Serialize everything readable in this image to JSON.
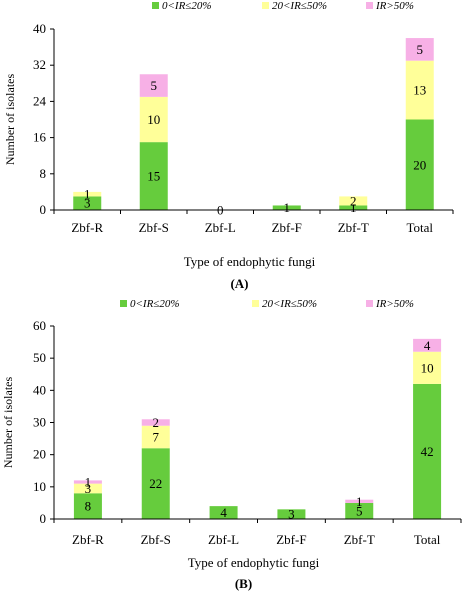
{
  "chart_data": [
    {
      "type": "bar",
      "stacked": true,
      "title": "",
      "xlabel": "Type of endophytic fungi",
      "ylabel": "Number of isolates",
      "panel_label": "(A)",
      "categories": [
        "Zbf-R",
        "Zbf-S",
        "Zbf-L",
        "Zbf-F",
        "Zbf-T",
        "Total"
      ],
      "series": [
        {
          "name": "0<IR≤20%",
          "color": "#66cc3d",
          "values": [
            3,
            15,
            0,
            1,
            1,
            20
          ],
          "labels": [
            "3",
            "15",
            "0",
            "1",
            "1",
            "20"
          ]
        },
        {
          "name": "20<IR≤50%",
          "color": "#ffff99",
          "values": [
            1,
            10,
            0,
            0,
            2,
            13
          ],
          "labels": [
            "1",
            "10",
            "",
            "",
            "2",
            "13"
          ]
        },
        {
          "name": "IR>50%",
          "color": "#f7b0e6",
          "values": [
            0,
            5,
            0,
            0,
            0,
            5
          ],
          "labels": [
            "",
            "5",
            "",
            "",
            "",
            "5"
          ]
        }
      ],
      "ylim": [
        0,
        40
      ],
      "yticks": [
        0,
        8,
        16,
        24,
        32,
        40
      ],
      "grid": false,
      "legend_position": "top"
    },
    {
      "type": "bar",
      "stacked": true,
      "title": "",
      "xlabel": "Type of endophytic fungi",
      "ylabel": "Number of isolates",
      "panel_label": "(B)",
      "categories": [
        "Zbf-R",
        "Zbf-S",
        "Zbf-L",
        "Zbf-F",
        "Zbf-T",
        "Total"
      ],
      "series": [
        {
          "name": "0<IR≤20%",
          "color": "#66cc3d",
          "values": [
            8,
            22,
            4,
            3,
            5,
            42
          ],
          "labels": [
            "8",
            "22",
            "4",
            "3",
            "5",
            "42"
          ]
        },
        {
          "name": "20<IR≤50%",
          "color": "#ffff99",
          "values": [
            3,
            7,
            0,
            0,
            0,
            10
          ],
          "labels": [
            "3",
            "7",
            "",
            "",
            "",
            "10"
          ]
        },
        {
          "name": "IR>50%",
          "color": "#f7b0e6",
          "values": [
            1,
            2,
            0,
            0,
            1,
            4
          ],
          "labels": [
            "1",
            "2",
            "",
            "",
            "1",
            "4"
          ]
        }
      ],
      "ylim": [
        0,
        60
      ],
      "yticks": [
        0,
        10,
        20,
        30,
        40,
        50,
        60
      ],
      "grid": false,
      "legend_position": "top"
    }
  ]
}
